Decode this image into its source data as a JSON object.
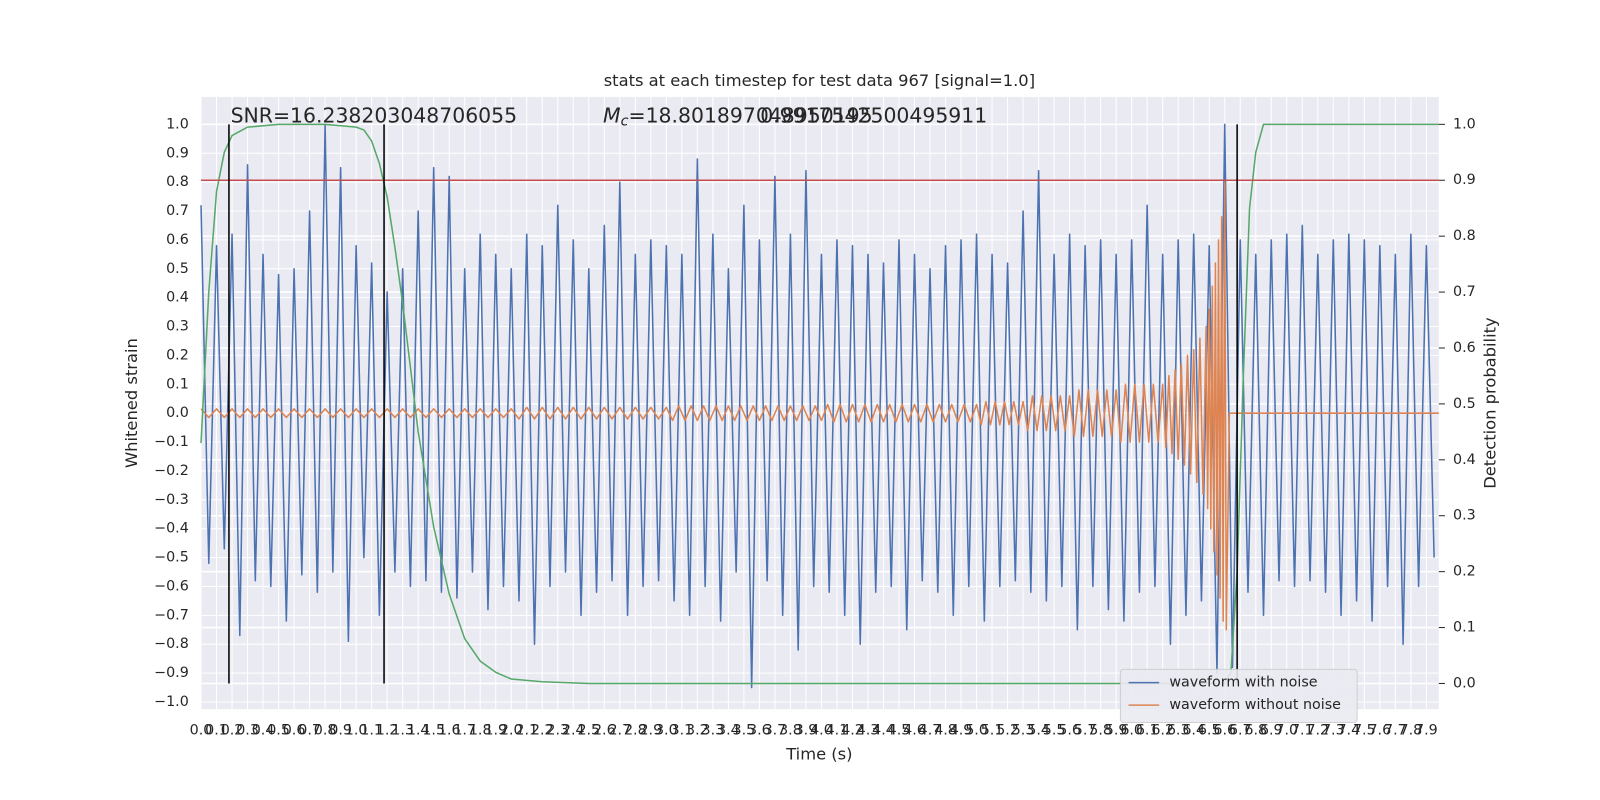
{
  "chart_data": {
    "type": "line",
    "title": "stats at each timestep for test data 967 [signal=1.0]",
    "xlabel": "Time (s)",
    "ylabel": "Whitened strain",
    "y2label": "Detection probability",
    "annotations": [
      {
        "text": "SNR=16.238203048706055"
      },
      {
        "symbol": "M",
        "subscript": "c",
        "text": "=18.801897048950195"
      },
      {
        "text": "0.9917542500495911"
      }
    ],
    "background": "#eaeaf2",
    "grid": true,
    "legend": "lower right",
    "xlim": [
      0,
      7.98
    ],
    "ylim": [
      -1.025,
      1.095
    ],
    "y2lim": [
      -0.046,
      1.049
    ],
    "xticks": [
      {
        "value": 0,
        "label": "0.0"
      },
      0.1,
      0.2,
      0.3,
      0.4,
      0.5,
      0.6,
      0.7,
      0.8,
      0.9,
      {
        "value": 1,
        "label": "1.0"
      },
      1.1,
      1.2,
      1.3,
      1.4,
      1.5,
      1.6,
      1.7,
      1.8,
      1.9,
      {
        "value": 2,
        "label": "2.0"
      },
      2.1,
      2.2,
      2.3,
      2.4,
      2.5,
      2.6,
      2.7,
      2.8,
      2.9,
      {
        "value": 3,
        "label": "3.0"
      },
      3.1,
      3.2,
      3.3,
      3.4,
      3.5,
      3.6,
      3.7,
      3.8,
      3.9,
      {
        "value": 4,
        "label": "4.0"
      },
      4.1,
      4.2,
      4.3,
      4.4,
      4.5,
      4.6,
      4.7,
      4.8,
      4.9,
      {
        "value": 5,
        "label": "5.0"
      },
      5.1,
      5.2,
      5.3,
      5.4,
      5.5,
      5.6,
      5.7,
      5.8,
      5.9,
      {
        "value": 6,
        "label": "6.0"
      },
      6.1,
      6.2,
      6.3,
      6.4,
      6.5,
      6.6,
      6.7,
      6.8,
      6.9,
      {
        "value": 7,
        "label": "7.0"
      },
      7.1,
      7.2,
      7.3,
      7.4,
      7.5,
      7.6,
      7.7,
      7.8,
      7.9
    ],
    "yticks": [
      {
        "value": -1,
        "label": "−1.0"
      },
      {
        "value": -0.9,
        "label": "−0.9"
      },
      {
        "value": -0.8,
        "label": "−0.8"
      },
      {
        "value": -0.7,
        "label": "−0.7"
      },
      {
        "value": -0.6,
        "label": "−0.6"
      },
      {
        "value": -0.5,
        "label": "−0.5"
      },
      {
        "value": -0.4,
        "label": "−0.4"
      },
      {
        "value": -0.3,
        "label": "−0.3"
      },
      {
        "value": -0.2,
        "label": "−0.2"
      },
      {
        "value": -0.1,
        "label": "−0.1"
      },
      {
        "value": 0,
        "label": "0.0"
      },
      0.1,
      0.2,
      0.3,
      0.4,
      0.5,
      0.6,
      0.7,
      0.8,
      0.9,
      {
        "value": 1,
        "label": "1.0"
      }
    ],
    "y2ticks": [
      {
        "value": 0,
        "label": "0.0"
      },
      0.1,
      0.2,
      0.3,
      0.4,
      0.5,
      0.6,
      0.7,
      0.8,
      0.9,
      {
        "value": 1,
        "label": "1.0"
      }
    ],
    "series": [
      {
        "name": "waveform with noise",
        "color": "#4c72b0",
        "x": [
          0,
          0.05,
          0.1,
          0.15,
          0.2,
          0.25,
          0.3,
          0.35,
          0.4,
          0.45,
          0.5,
          0.55,
          0.6,
          0.65,
          0.7,
          0.75,
          0.8,
          0.85,
          0.9,
          0.95,
          1,
          1.05,
          1.1,
          1.15,
          1.2,
          1.25,
          1.3,
          1.35,
          1.4,
          1.45,
          1.5,
          1.55,
          1.6,
          1.65,
          1.7,
          1.75,
          1.8,
          1.85,
          1.9,
          1.95,
          2,
          2.05,
          2.1,
          2.15,
          2.2,
          2.25,
          2.3,
          2.35,
          2.4,
          2.45,
          2.5,
          2.55,
          2.6,
          2.65,
          2.7,
          2.75,
          2.8,
          2.85,
          2.9,
          2.95,
          3,
          3.05,
          3.1,
          3.15,
          3.2,
          3.25,
          3.3,
          3.35,
          3.4,
          3.45,
          3.5,
          3.55,
          3.6,
          3.65,
          3.7,
          3.75,
          3.8,
          3.85,
          3.9,
          3.95,
          4,
          4.05,
          4.1,
          4.15,
          4.2,
          4.25,
          4.3,
          4.35,
          4.4,
          4.45,
          4.5,
          4.55,
          4.6,
          4.65,
          4.7,
          4.75,
          4.8,
          4.85,
          4.9,
          4.95,
          5,
          5.05,
          5.1,
          5.15,
          5.2,
          5.25,
          5.3,
          5.35,
          5.4,
          5.45,
          5.5,
          5.55,
          5.6,
          5.65,
          5.7,
          5.75,
          5.8,
          5.85,
          5.9,
          5.95,
          6,
          6.05,
          6.1,
          6.15,
          6.2,
          6.25,
          6.3,
          6.35,
          6.4,
          6.45,
          6.5,
          6.55,
          6.6,
          6.65,
          6.7,
          6.75,
          6.8,
          6.85,
          6.9,
          6.95,
          7,
          7.05,
          7.1,
          7.15,
          7.2,
          7.25,
          7.3,
          7.35,
          7.4,
          7.45,
          7.5,
          7.55,
          7.6,
          7.65,
          7.7,
          7.75,
          7.8,
          7.85,
          7.9,
          7.95
        ],
        "values": [
          0.72,
          -0.52,
          0.58,
          -0.47,
          0.62,
          -0.77,
          0.86,
          -0.58,
          0.55,
          -0.6,
          0.48,
          -0.72,
          0.5,
          -0.56,
          0.7,
          -0.62,
          1.0,
          -0.55,
          0.85,
          -0.79,
          0.58,
          -0.5,
          0.52,
          -0.7,
          0.42,
          -0.55,
          0.5,
          -0.6,
          0.7,
          -0.58,
          0.85,
          -0.62,
          0.82,
          -0.64,
          0.5,
          -0.55,
          0.62,
          -0.68,
          0.55,
          -0.6,
          0.5,
          -0.65,
          0.62,
          -0.8,
          0.58,
          -0.6,
          0.72,
          -0.55,
          0.6,
          -0.7,
          0.5,
          -0.62,
          0.65,
          -0.58,
          0.8,
          -0.7,
          0.55,
          -0.6,
          0.6,
          -0.58,
          0.58,
          -0.65,
          0.55,
          -0.7,
          0.88,
          -0.6,
          0.62,
          -0.72,
          0.5,
          -0.55,
          0.72,
          -0.95,
          0.6,
          -0.58,
          0.82,
          -0.7,
          0.62,
          -0.82,
          0.84,
          -0.6,
          0.55,
          -0.62,
          0.6,
          -0.7,
          0.58,
          -0.8,
          0.55,
          -0.62,
          0.52,
          -0.6,
          0.6,
          -0.75,
          0.55,
          -0.58,
          0.5,
          -0.62,
          0.58,
          -0.7,
          0.6,
          -0.6,
          0.62,
          -0.72,
          0.55,
          -0.6,
          0.52,
          -0.58,
          0.7,
          -0.62,
          0.84,
          -0.65,
          0.55,
          -0.6,
          0.62,
          -0.75,
          0.58,
          -0.6,
          0.6,
          -0.68,
          0.55,
          -0.72,
          0.6,
          -0.62,
          0.72,
          -0.6,
          0.55,
          -0.8,
          0.6,
          -0.7,
          0.62,
          -0.65,
          0.58,
          -0.9,
          1.0,
          -0.88,
          0.6,
          -0.62,
          0.55,
          -0.7,
          0.6,
          -0.58,
          0.62,
          -0.6,
          0.65,
          -0.58,
          0.55,
          -0.62,
          0.6,
          -0.7,
          0.62,
          -0.65,
          0.6,
          -0.72,
          0.58,
          -0.6,
          0.55,
          -0.8,
          0.62,
          -0.6,
          0.58,
          -0.5
        ]
      },
      {
        "name": "waveform without noise",
        "color": "#dd8452",
        "x": [
          0,
          0.05,
          0.1,
          0.15,
          0.2,
          0.25,
          0.3,
          0.35,
          0.4,
          0.45,
          0.5,
          0.55,
          0.6,
          0.65,
          0.7,
          0.75,
          0.8,
          0.85,
          0.9,
          0.95,
          1,
          1.05,
          1.1,
          1.15,
          1.2,
          1.25,
          1.3,
          1.35,
          1.4,
          1.45,
          1.5,
          1.55,
          1.6,
          1.65,
          1.7,
          1.75,
          1.8,
          1.85,
          1.9,
          1.95,
          2,
          2.05,
          2.1,
          2.15,
          2.2,
          2.25,
          2.3,
          2.35,
          2.4,
          2.45,
          2.5,
          2.55,
          2.6,
          2.65,
          2.7,
          2.75,
          2.8,
          2.85,
          2.9,
          2.95,
          3,
          3.04,
          3.08,
          3.12,
          3.16,
          3.2,
          3.24,
          3.28,
          3.32,
          3.36,
          3.4,
          3.44,
          3.48,
          3.52,
          3.56,
          3.6,
          3.64,
          3.68,
          3.72,
          3.76,
          3.8,
          3.84,
          3.88,
          3.92,
          3.96,
          4,
          4.04,
          4.08,
          4.12,
          4.16,
          4.2,
          4.24,
          4.28,
          4.32,
          4.36,
          4.4,
          4.44,
          4.48,
          4.52,
          4.56,
          4.6,
          4.64,
          4.68,
          4.72,
          4.76,
          4.8,
          4.84,
          4.88,
          4.92,
          4.96,
          5,
          5.03,
          5.06,
          5.09,
          5.12,
          5.15,
          5.18,
          5.21,
          5.24,
          5.27,
          5.3,
          5.33,
          5.36,
          5.39,
          5.42,
          5.45,
          5.48,
          5.51,
          5.54,
          5.57,
          5.6,
          5.63,
          5.66,
          5.69,
          5.72,
          5.75,
          5.78,
          5.81,
          5.84,
          5.87,
          5.9,
          5.93,
          5.96,
          5.99,
          6.02,
          6.05,
          6.08,
          6.11,
          6.14,
          6.17,
          6.2,
          6.22,
          6.24,
          6.26,
          6.28,
          6.3,
          6.32,
          6.34,
          6.36,
          6.38,
          6.4,
          6.42,
          6.44,
          6.46,
          6.48,
          6.49,
          6.5,
          6.51,
          6.52,
          6.53,
          6.54,
          6.55,
          6.56,
          6.57,
          6.58,
          6.59,
          6.6,
          6.61,
          6.63,
          7.98
        ],
        "values": [
          0.015,
          -0.015,
          0.015,
          -0.015,
          0.015,
          -0.015,
          0.015,
          -0.015,
          0.015,
          -0.015,
          0.015,
          -0.015,
          0.015,
          -0.015,
          0.015,
          -0.015,
          0.015,
          -0.015,
          0.015,
          -0.015,
          0.015,
          -0.015,
          0.015,
          -0.015,
          0.015,
          -0.015,
          0.015,
          -0.015,
          0.015,
          -0.015,
          0.015,
          -0.015,
          0.015,
          -0.015,
          0.015,
          -0.015,
          0.015,
          -0.015,
          0.015,
          -0.015,
          0.015,
          -0.02,
          0.02,
          -0.02,
          0.02,
          -0.02,
          0.02,
          -0.02,
          0.02,
          -0.02,
          0.02,
          -0.02,
          0.02,
          -0.02,
          0.02,
          -0.02,
          0.02,
          -0.02,
          0.02,
          -0.02,
          0.02,
          -0.025,
          0.025,
          -0.025,
          0.025,
          -0.025,
          0.025,
          -0.025,
          0.025,
          -0.025,
          0.025,
          -0.025,
          0.025,
          -0.025,
          0.025,
          -0.025,
          0.025,
          -0.025,
          0.025,
          -0.025,
          0.025,
          -0.025,
          0.025,
          -0.025,
          0.025,
          -0.025,
          0.03,
          -0.03,
          0.03,
          -0.03,
          0.03,
          -0.03,
          0.03,
          -0.03,
          0.03,
          -0.03,
          0.03,
          -0.03,
          0.03,
          -0.03,
          0.03,
          -0.03,
          0.03,
          -0.03,
          0.03,
          -0.03,
          0.03,
          -0.03,
          0.03,
          -0.03,
          0.03,
          -0.04,
          0.04,
          -0.04,
          0.04,
          -0.04,
          0.04,
          -0.04,
          0.04,
          -0.04,
          0.04,
          -0.06,
          0.06,
          -0.06,
          0.06,
          -0.06,
          0.06,
          -0.06,
          0.06,
          -0.06,
          0.06,
          -0.08,
          0.08,
          -0.08,
          0.08,
          -0.08,
          0.08,
          -0.08,
          0.08,
          -0.08,
          0.08,
          -0.1,
          0.1,
          -0.1,
          0.1,
          -0.1,
          0.1,
          -0.1,
          0.1,
          -0.1,
          0.1,
          -0.12,
          0.13,
          -0.14,
          0.15,
          -0.16,
          0.17,
          -0.18,
          0.2,
          -0.21,
          0.22,
          -0.24,
          0.26,
          -0.28,
          0.3,
          -0.33,
          0.36,
          -0.4,
          0.44,
          -0.48,
          0.52,
          -0.56,
          0.6,
          -0.64,
          0.68,
          -0.72,
          0.8,
          -0.75,
          0,
          0
        ]
      },
      {
        "color": "#55a868",
        "axis": "y2",
        "x": [
          0,
          0.05,
          0.1,
          0.15,
          0.2,
          0.3,
          0.5,
          0.8,
          1,
          1.05,
          1.1,
          1.15,
          1.2,
          1.25,
          1.3,
          1.4,
          1.5,
          1.6,
          1.7,
          1.8,
          1.9,
          2,
          2.2,
          2.5,
          6.6,
          6.64,
          6.68,
          6.72,
          6.76,
          6.8,
          6.85,
          7.98
        ],
        "values": [
          0.43,
          0.7,
          0.88,
          0.95,
          0.98,
          0.995,
          1,
          1,
          0.995,
          0.99,
          0.97,
          0.93,
          0.87,
          0.78,
          0.68,
          0.45,
          0.28,
          0.16,
          0.08,
          0.04,
          0.02,
          0.008,
          0.003,
          0,
          0,
          0.02,
          0.2,
          0.55,
          0.85,
          0.95,
          1,
          1
        ]
      }
    ],
    "hlines": [
      {
        "value": 0.9,
        "axis": "y2",
        "color": "#c44e52"
      }
    ],
    "vlines": [
      {
        "value": 0.18,
        "color": "#000000"
      },
      {
        "value": 1.18,
        "color": "#000000"
      },
      {
        "value": 6.68,
        "color": "#000000"
      }
    ]
  }
}
